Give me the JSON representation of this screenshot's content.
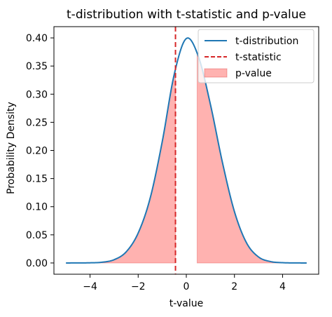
{
  "chart_data": {
    "type": "line",
    "title": "t-distribution with t-statistic and p-value",
    "xlabel": "t-value",
    "ylabel": "Probability Density",
    "xlim": [
      -5.5,
      5.5
    ],
    "ylim": [
      -0.02,
      0.42
    ],
    "xticks": [
      -4,
      -2,
      0,
      2,
      4
    ],
    "xtick_labels": [
      "−4",
      "−2",
      "0",
      "2",
      "4"
    ],
    "yticks": [
      0.0,
      0.05,
      0.1,
      0.15,
      0.2,
      0.25,
      0.3,
      0.35,
      0.4
    ],
    "ytick_labels": [
      "0.00",
      "0.05",
      "0.10",
      "0.15",
      "0.20",
      "0.25",
      "0.30",
      "0.35",
      "0.40"
    ],
    "grid": false,
    "legend_position": "top-right",
    "series": [
      {
        "name": "t-distribution",
        "kind": "line",
        "color": "#1f77b4",
        "x": [
          -5.0,
          -4.5,
          -4.0,
          -3.5,
          -3.0,
          -2.5,
          -2.0,
          -1.5,
          -1.0,
          -0.5,
          0.0,
          0.5,
          1.0,
          1.5,
          2.0,
          2.5,
          3.0,
          3.5,
          4.0,
          4.5,
          5.0
        ],
        "y": [
          0.0,
          0.0001,
          0.0003,
          0.0013,
          0.0058,
          0.0197,
          0.0532,
          0.1155,
          0.2156,
          0.3356,
          0.3989,
          0.3672,
          0.2821,
          0.1788,
          0.0912,
          0.0359,
          0.0107,
          0.0025,
          0.0005,
          0.0001,
          0.0
        ]
      },
      {
        "name": "t-statistic",
        "kind": "vline",
        "color": "#d62728",
        "x": -0.45
      },
      {
        "name": "p-value",
        "kind": "fill",
        "color": "#ff9896",
        "regions": [
          [
            -5.0,
            -0.45
          ],
          [
            0.45,
            5.0
          ]
        ]
      }
    ]
  }
}
